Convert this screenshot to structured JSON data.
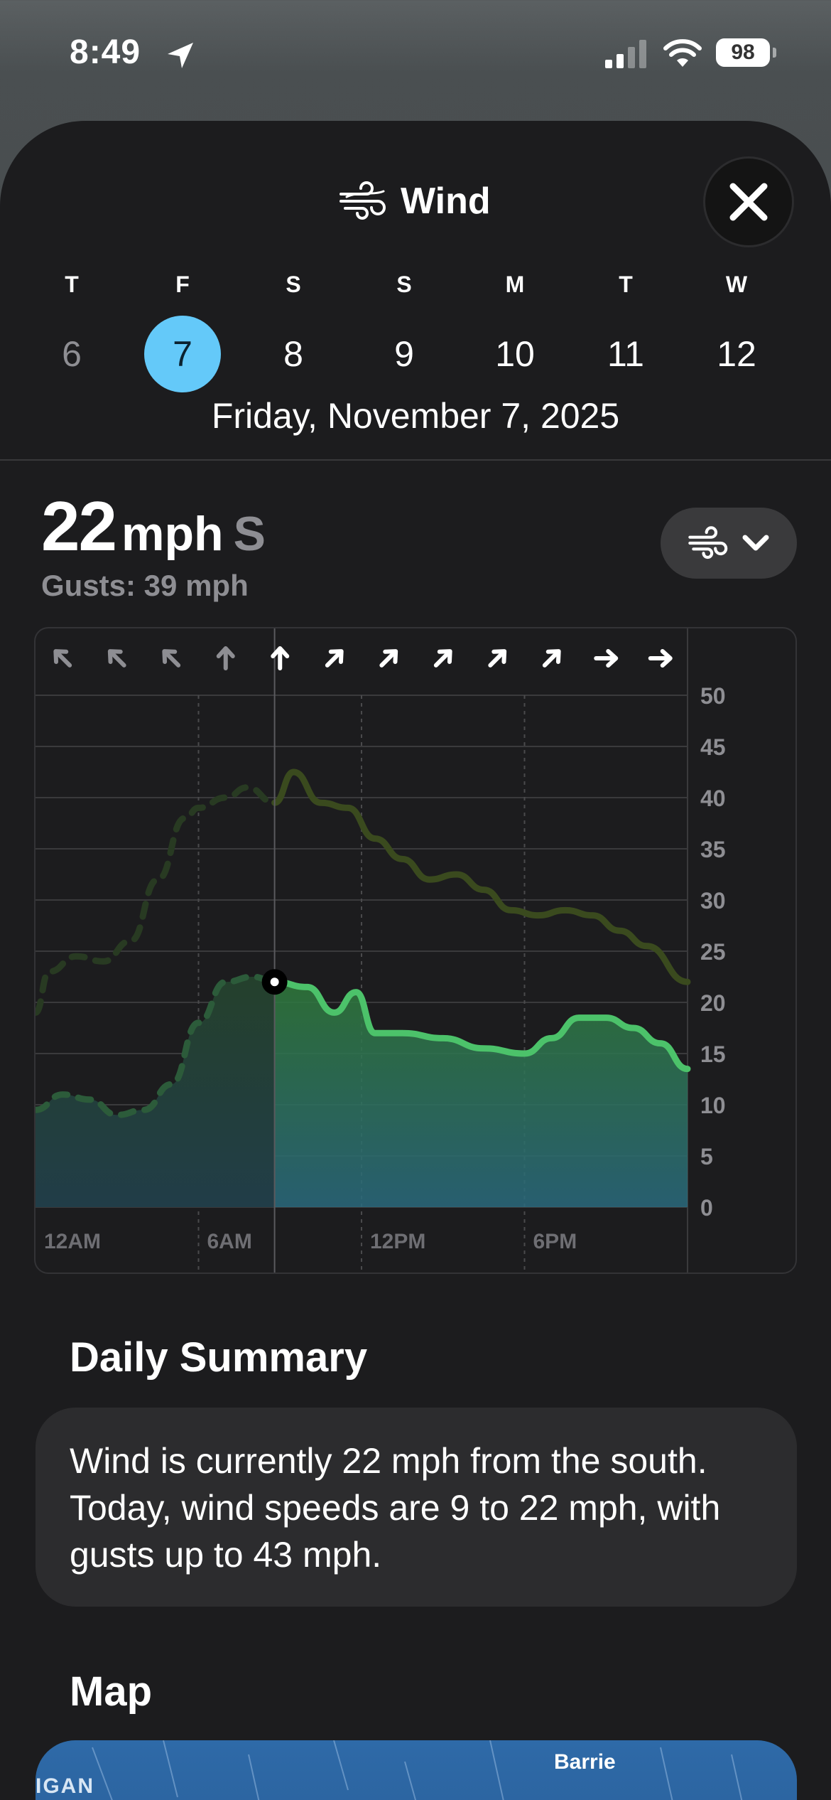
{
  "status_bar": {
    "time": "8:49",
    "battery": "98",
    "icons": [
      "location-arrow-icon",
      "cellular-signal-icon",
      "wifi-icon",
      "battery-icon"
    ]
  },
  "header": {
    "title": "Wind",
    "icon": "wind-icon",
    "close_icon": "close-icon"
  },
  "days": [
    {
      "letter": "T",
      "num": "6",
      "state": "past"
    },
    {
      "letter": "F",
      "num": "7",
      "state": "selected"
    },
    {
      "letter": "S",
      "num": "8",
      "state": "future"
    },
    {
      "letter": "S",
      "num": "9",
      "state": "future"
    },
    {
      "letter": "M",
      "num": "10",
      "state": "future"
    },
    {
      "letter": "T",
      "num": "11",
      "state": "future"
    },
    {
      "letter": "W",
      "num": "12",
      "state": "future"
    }
  ],
  "date_label": "Friday, November 7, 2025",
  "current": {
    "speed": "22",
    "unit": "mph",
    "direction": "S",
    "gusts": "Gusts: 39 mph"
  },
  "picker": {
    "icon": "wind-icon",
    "chevron": "chevron-down-icon"
  },
  "chart_data": {
    "type": "area",
    "x_tick_labels": [
      "12AM",
      "6AM",
      "12PM",
      "6PM"
    ],
    "y_tick_labels": [
      "50",
      "45",
      "40",
      "35",
      "30",
      "25",
      "20",
      "15",
      "10",
      "5",
      "0"
    ],
    "ylim": [
      0,
      50
    ],
    "xlim": [
      0,
      24
    ],
    "current_hour": 8.8,
    "grid": true,
    "direction_arrows": [
      {
        "hour": 1,
        "deg": -45,
        "past": true
      },
      {
        "hour": 3,
        "deg": -45,
        "past": true
      },
      {
        "hour": 5,
        "deg": -45,
        "past": true
      },
      {
        "hour": 7,
        "deg": 0,
        "past": true
      },
      {
        "hour": 9,
        "deg": 0,
        "past": false
      },
      {
        "hour": 11,
        "deg": 45,
        "past": false
      },
      {
        "hour": 13,
        "deg": 45,
        "past": false
      },
      {
        "hour": 15,
        "deg": 45,
        "past": false
      },
      {
        "hour": 17,
        "deg": 45,
        "past": false
      },
      {
        "hour": 19,
        "deg": 45,
        "past": false
      },
      {
        "hour": 21,
        "deg": 90,
        "past": false
      },
      {
        "hour": 23,
        "deg": 90,
        "past": false
      }
    ],
    "series": [
      {
        "kind": "speed",
        "x": [
          0,
          1,
          2,
          3,
          4,
          5,
          6,
          7,
          8,
          8.8,
          10,
          11,
          11.8,
          12.5,
          13.5,
          15,
          16.5,
          18,
          19,
          20,
          21,
          22,
          23,
          24
        ],
        "y": [
          9.5,
          11,
          10.5,
          9,
          9.5,
          12,
          18,
          22,
          22.5,
          22,
          21.5,
          19,
          21,
          17,
          17,
          16.5,
          15.5,
          15,
          16.5,
          18.5,
          18.5,
          17.5,
          16,
          13.5
        ],
        "color": "#4cc26a"
      },
      {
        "kind": "gusts",
        "x": [
          0,
          0.5,
          1.5,
          2.5,
          3.5,
          4.5,
          5.5,
          6,
          7,
          7.8,
          8.8,
          9.5,
          10.5,
          11.5,
          12.5,
          13.5,
          14.5,
          15.5,
          16.5,
          17.5,
          18.5,
          19.5,
          20.5,
          21.5,
          22.5,
          24
        ],
        "y": [
          19,
          23,
          24.5,
          24,
          26,
          32,
          38,
          39,
          40,
          41,
          39.5,
          42.5,
          39.5,
          39,
          36,
          34,
          32,
          32.5,
          31,
          29,
          28.5,
          29,
          28.5,
          27,
          25.5,
          22
        ],
        "color": "#3a4a1e"
      }
    ]
  },
  "summary": {
    "title": "Daily Summary",
    "text": "Wind is currently 22 mph from the south. Today, wind speeds are 9 to 22 mph, with gusts up to 43 mph."
  },
  "map": {
    "title": "Map",
    "city_label": "Barrie",
    "region_label": "IGAN"
  }
}
